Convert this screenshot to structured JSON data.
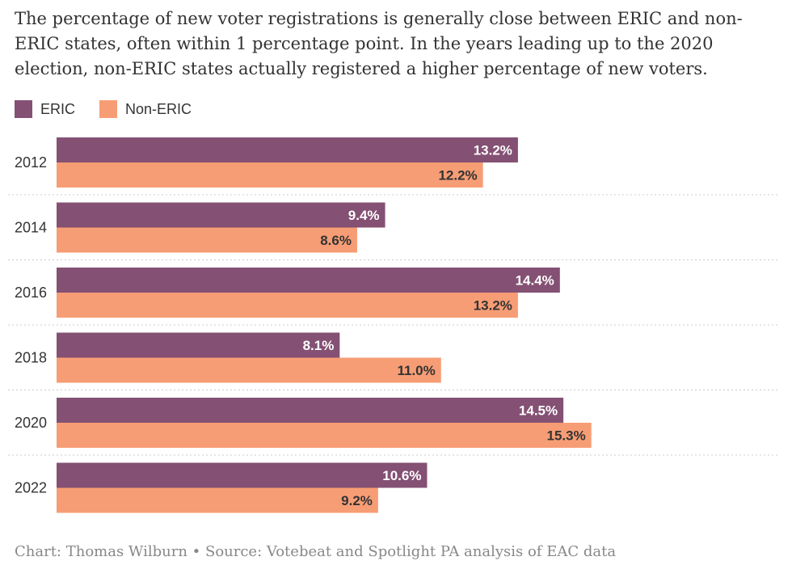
{
  "subtitle": "The percentage of new voter registrations is generally close between ERIC and non-ERIC states, often within 1 percentage point. In the years leading up to the 2020 election, non-ERIC states actually registered a higher percentage of new voters.",
  "legend": {
    "eric_label": "ERIC",
    "non_eric_label": "Non-ERIC"
  },
  "colors": {
    "eric": "#845073",
    "non_eric": "#F79D75",
    "eric_text": "#ffffff",
    "non_eric_text": "#333333",
    "grid": "#cccccc"
  },
  "source": "Chart: Thomas Wilburn • Source: Votebeat and Spotlight PA analysis of EAC data",
  "chart_data": {
    "type": "bar",
    "orientation": "horizontal",
    "categories": [
      "2012",
      "2014",
      "2016",
      "2018",
      "2020",
      "2022"
    ],
    "series": [
      {
        "name": "ERIC",
        "values": [
          13.2,
          9.4,
          14.4,
          8.1,
          14.5,
          10.6
        ],
        "labels": [
          "13.2%",
          "9.4%",
          "14.4%",
          "8.1%",
          "14.5%",
          "10.6%"
        ]
      },
      {
        "name": "Non-ERIC",
        "values": [
          12.2,
          8.6,
          13.2,
          11.0,
          15.3,
          9.2
        ],
        "labels": [
          "12.2%",
          "8.6%",
          "13.2%",
          "11.0%",
          "15.3%",
          "9.2%"
        ]
      }
    ],
    "xlim": [
      0,
      18
    ],
    "grid": true,
    "legend_position": "top-left",
    "value_suffix": "%"
  }
}
